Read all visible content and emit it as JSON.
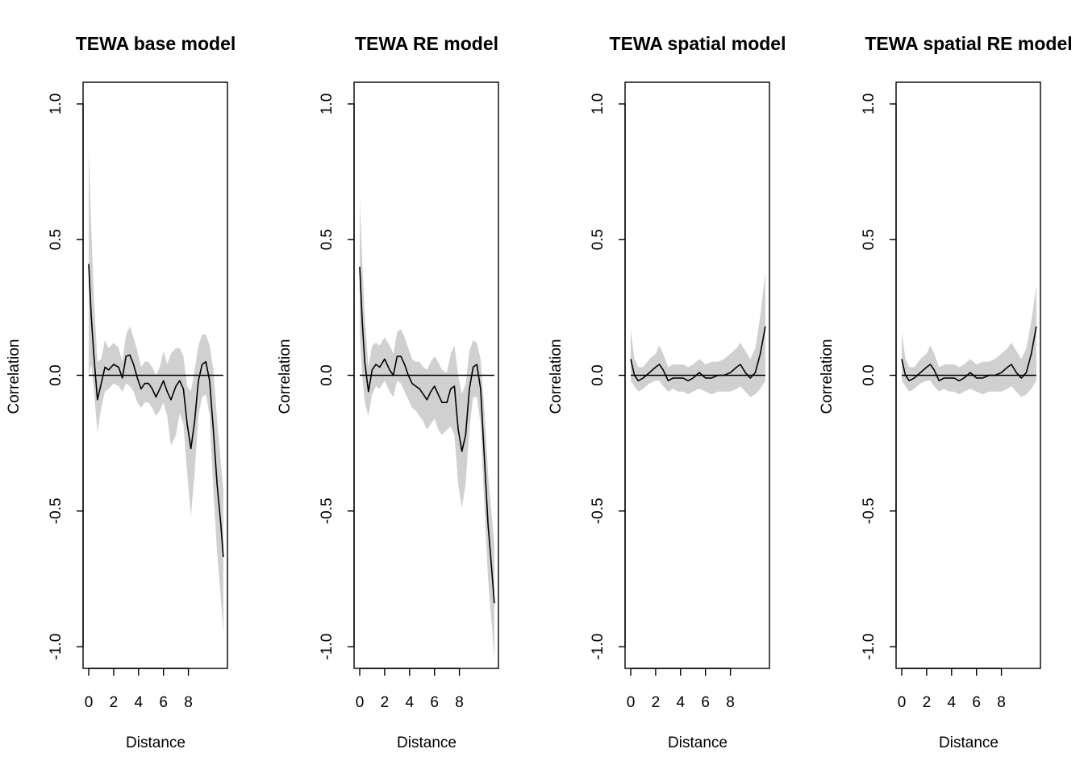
{
  "chart_data": [
    {
      "type": "line",
      "title": "TEWA base model",
      "xlabel": "Distance",
      "ylabel": "Correlation",
      "xlim": [
        0,
        11
      ],
      "ylim": [
        -1.08,
        1.08
      ],
      "xticks": [
        0,
        2,
        4,
        6,
        8
      ],
      "yticks": [
        -1.0,
        -0.5,
        0.0,
        0.5,
        1.0
      ],
      "hline": 0.0,
      "band_color": "#d0d0d0",
      "line_color": "#000000",
      "x": [
        0.0,
        0.2,
        0.4,
        0.7,
        1.0,
        1.3,
        1.6,
        2.0,
        2.4,
        2.7,
        3.0,
        3.3,
        3.6,
        3.9,
        4.2,
        4.5,
        4.8,
        5.1,
        5.4,
        5.7,
        6.0,
        6.3,
        6.6,
        7.0,
        7.3,
        7.6,
        7.9,
        8.2,
        8.5,
        8.8,
        9.1,
        9.4,
        9.7,
        10.0,
        10.3,
        10.6,
        10.8
      ],
      "y": [
        0.41,
        0.22,
        0.08,
        -0.09,
        -0.03,
        0.03,
        0.02,
        0.04,
        0.03,
        -0.01,
        0.07,
        0.075,
        0.04,
        -0.01,
        -0.05,
        -0.03,
        -0.03,
        -0.05,
        -0.08,
        -0.05,
        -0.02,
        -0.06,
        -0.09,
        -0.04,
        -0.02,
        -0.05,
        -0.18,
        -0.27,
        -0.17,
        -0.02,
        0.04,
        0.05,
        -0.02,
        -0.2,
        -0.4,
        -0.55,
        -0.67
      ],
      "lower": [
        0.0,
        0.04,
        -0.05,
        -0.21,
        -0.12,
        -0.06,
        -0.05,
        -0.03,
        -0.04,
        -0.06,
        -0.03,
        -0.04,
        -0.06,
        -0.1,
        -0.12,
        -0.1,
        -0.1,
        -0.12,
        -0.15,
        -0.13,
        -0.1,
        -0.15,
        -0.26,
        -0.22,
        -0.14,
        -0.18,
        -0.36,
        -0.52,
        -0.36,
        -0.15,
        -0.08,
        -0.07,
        -0.15,
        -0.42,
        -0.65,
        -0.82,
        -0.95
      ],
      "upper": [
        0.84,
        0.55,
        0.3,
        0.05,
        0.06,
        0.13,
        0.1,
        0.12,
        0.1,
        0.05,
        0.15,
        0.18,
        0.14,
        0.09,
        0.03,
        0.05,
        0.05,
        0.03,
        0.0,
        0.03,
        0.09,
        0.04,
        0.08,
        0.1,
        0.1,
        0.07,
        -0.04,
        -0.06,
        0.02,
        0.11,
        0.15,
        0.15,
        0.11,
        0.02,
        -0.16,
        -0.32,
        -0.42
      ]
    },
    {
      "type": "line",
      "title": "TEWA RE model",
      "xlabel": "Distance",
      "ylabel": "Correlation",
      "xlim": [
        0,
        11
      ],
      "ylim": [
        -1.08,
        1.08
      ],
      "xticks": [
        0,
        2,
        4,
        6,
        8
      ],
      "yticks": [
        -1.0,
        -0.5,
        0.0,
        0.5,
        1.0
      ],
      "hline": 0.0,
      "band_color": "#d0d0d0",
      "line_color": "#000000",
      "x": [
        0.0,
        0.2,
        0.4,
        0.7,
        1.0,
        1.3,
        1.6,
        2.0,
        2.4,
        2.7,
        3.0,
        3.3,
        3.6,
        3.9,
        4.2,
        4.5,
        4.8,
        5.1,
        5.4,
        5.7,
        6.0,
        6.3,
        6.6,
        7.0,
        7.3,
        7.6,
        7.9,
        8.2,
        8.5,
        8.8,
        9.1,
        9.4,
        9.7,
        10.0,
        10.3,
        10.6,
        10.8
      ],
      "y": [
        0.4,
        0.2,
        0.05,
        -0.06,
        0.02,
        0.04,
        0.03,
        0.06,
        0.02,
        0.0,
        0.07,
        0.07,
        0.04,
        0.0,
        -0.03,
        -0.04,
        -0.05,
        -0.07,
        -0.09,
        -0.06,
        -0.04,
        -0.07,
        -0.1,
        -0.1,
        -0.05,
        -0.04,
        -0.2,
        -0.28,
        -0.22,
        -0.05,
        0.03,
        0.04,
        -0.05,
        -0.3,
        -0.55,
        -0.72,
        -0.84
      ],
      "lower": [
        0.15,
        0.0,
        -0.1,
        -0.15,
        -0.07,
        -0.04,
        -0.05,
        -0.02,
        -0.06,
        -0.08,
        -0.02,
        -0.03,
        -0.06,
        -0.09,
        -0.12,
        -0.13,
        -0.15,
        -0.17,
        -0.2,
        -0.18,
        -0.16,
        -0.2,
        -0.22,
        -0.2,
        -0.19,
        -0.22,
        -0.4,
        -0.49,
        -0.4,
        -0.2,
        -0.08,
        -0.08,
        -0.18,
        -0.48,
        -0.75,
        -0.92,
        -1.05
      ],
      "upper": [
        0.65,
        0.42,
        0.22,
        0.03,
        0.11,
        0.12,
        0.11,
        0.14,
        0.11,
        0.08,
        0.16,
        0.17,
        0.14,
        0.1,
        0.06,
        0.05,
        0.05,
        0.03,
        0.02,
        0.05,
        0.07,
        0.05,
        0.02,
        0.01,
        0.08,
        0.11,
        0.0,
        -0.07,
        -0.03,
        0.09,
        0.13,
        0.12,
        0.06,
        -0.12,
        -0.36,
        -0.52,
        -0.62
      ]
    },
    {
      "type": "line",
      "title": "TEWA spatial model",
      "xlabel": "Distance",
      "ylabel": "Correlation",
      "xlim": [
        0,
        11
      ],
      "ylim": [
        -1.08,
        1.08
      ],
      "xticks": [
        0,
        2,
        4,
        6,
        8
      ],
      "yticks": [
        -1.0,
        -0.5,
        0.0,
        0.5,
        1.0
      ],
      "hline": 0.0,
      "band_color": "#d0d0d0",
      "line_color": "#000000",
      "x": [
        0.0,
        0.3,
        0.6,
        1.0,
        1.5,
        2.0,
        2.3,
        2.6,
        3.0,
        3.4,
        3.8,
        4.2,
        4.6,
        5.0,
        5.5,
        6.0,
        6.5,
        7.0,
        7.5,
        8.0,
        8.5,
        8.8,
        9.2,
        9.6,
        10.0,
        10.4,
        10.8
      ],
      "y": [
        0.06,
        0.0,
        -0.02,
        -0.01,
        0.01,
        0.03,
        0.04,
        0.02,
        -0.02,
        -0.01,
        -0.01,
        -0.01,
        -0.02,
        -0.01,
        0.01,
        -0.01,
        -0.01,
        0.0,
        0.0,
        0.01,
        0.03,
        0.04,
        0.01,
        -0.01,
        0.01,
        0.08,
        0.18
      ],
      "lower": [
        -0.02,
        -0.04,
        -0.06,
        -0.05,
        -0.03,
        -0.02,
        -0.02,
        -0.04,
        -0.06,
        -0.05,
        -0.06,
        -0.06,
        -0.07,
        -0.06,
        -0.05,
        -0.06,
        -0.07,
        -0.06,
        -0.06,
        -0.06,
        -0.05,
        -0.04,
        -0.06,
        -0.08,
        -0.07,
        -0.05,
        -0.02
      ],
      "upper": [
        0.17,
        0.06,
        0.03,
        0.03,
        0.06,
        0.08,
        0.11,
        0.08,
        0.03,
        0.04,
        0.04,
        0.04,
        0.03,
        0.04,
        0.06,
        0.04,
        0.05,
        0.05,
        0.06,
        0.08,
        0.1,
        0.12,
        0.09,
        0.06,
        0.1,
        0.22,
        0.38
      ]
    },
    {
      "type": "line",
      "title": "TEWA spatial RE model",
      "xlabel": "Distance",
      "ylabel": "Correlation",
      "xlim": [
        0,
        11
      ],
      "ylim": [
        -1.08,
        1.08
      ],
      "xticks": [
        0,
        2,
        4,
        6,
        8
      ],
      "yticks": [
        -1.0,
        -0.5,
        0.0,
        0.5,
        1.0
      ],
      "hline": 0.0,
      "band_color": "#d0d0d0",
      "line_color": "#000000",
      "x": [
        0.0,
        0.3,
        0.6,
        1.0,
        1.5,
        2.0,
        2.3,
        2.6,
        3.0,
        3.4,
        3.8,
        4.2,
        4.6,
        5.0,
        5.5,
        6.0,
        6.5,
        7.0,
        7.5,
        8.0,
        8.5,
        8.8,
        9.2,
        9.6,
        10.0,
        10.4,
        10.8
      ],
      "y": [
        0.06,
        0.0,
        -0.02,
        -0.01,
        0.01,
        0.03,
        0.04,
        0.02,
        -0.02,
        -0.01,
        -0.01,
        -0.01,
        -0.02,
        -0.01,
        0.01,
        -0.01,
        -0.01,
        0.0,
        0.0,
        0.01,
        0.03,
        0.04,
        0.01,
        -0.01,
        0.01,
        0.08,
        0.18
      ],
      "lower": [
        -0.02,
        -0.04,
        -0.06,
        -0.05,
        -0.03,
        -0.02,
        -0.02,
        -0.04,
        -0.06,
        -0.05,
        -0.06,
        -0.06,
        -0.07,
        -0.06,
        -0.05,
        -0.06,
        -0.07,
        -0.06,
        -0.06,
        -0.06,
        -0.05,
        -0.04,
        -0.06,
        -0.08,
        -0.07,
        -0.05,
        -0.02
      ],
      "upper": [
        0.16,
        0.06,
        0.03,
        0.03,
        0.06,
        0.08,
        0.11,
        0.08,
        0.03,
        0.04,
        0.04,
        0.04,
        0.03,
        0.04,
        0.06,
        0.04,
        0.05,
        0.05,
        0.06,
        0.08,
        0.1,
        0.12,
        0.09,
        0.06,
        0.1,
        0.2,
        0.33
      ]
    }
  ]
}
